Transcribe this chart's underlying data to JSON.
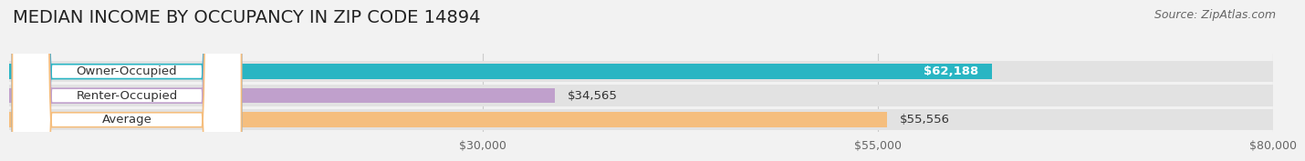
{
  "title": "MEDIAN INCOME BY OCCUPANCY IN ZIP CODE 14894",
  "source": "Source: ZipAtlas.com",
  "categories": [
    "Owner-Occupied",
    "Renter-Occupied",
    "Average"
  ],
  "values": [
    62188,
    34565,
    55556
  ],
  "bar_colors": [
    "#29b5c3",
    "#c0a0cc",
    "#f5be7e"
  ],
  "bar_labels": [
    "$62,188",
    "$34,565",
    "$55,556"
  ],
  "label_text_colors": [
    "white",
    "black",
    "black"
  ],
  "label_inside": [
    true,
    false,
    false
  ],
  "xlim_min": 0,
  "xlim_max": 80000,
  "xticks": [
    30000,
    55000,
    80000
  ],
  "xtick_labels": [
    "$30,000",
    "$55,000",
    "$80,000"
  ],
  "background_color": "#f2f2f2",
  "bar_bg_color": "#e2e2e2",
  "title_fontsize": 14,
  "source_fontsize": 9,
  "label_fontsize": 9.5,
  "tick_fontsize": 9,
  "cat_fontsize": 9.5
}
